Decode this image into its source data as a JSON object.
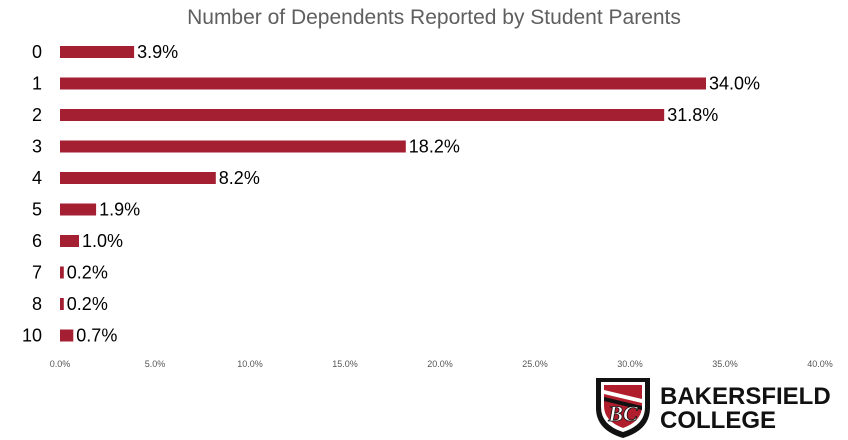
{
  "chart_data": {
    "type": "bar",
    "orientation": "horizontal",
    "title": "Number of Dependents Reported by Student Parents",
    "categories": [
      "0",
      "1",
      "2",
      "3",
      "4",
      "5",
      "6",
      "7",
      "8",
      "10"
    ],
    "values": [
      3.9,
      34.0,
      31.8,
      18.2,
      8.2,
      1.9,
      1.0,
      0.2,
      0.2,
      0.7
    ],
    "data_labels": [
      "3.9%",
      "34.0%",
      "31.8%",
      "18.2%",
      "8.2%",
      "1.9%",
      "1.0%",
      "0.2%",
      "0.2%",
      "0.7%"
    ],
    "xlim": [
      0,
      40
    ],
    "xticks": [
      0,
      5,
      10,
      15,
      20,
      25,
      30,
      35,
      40
    ],
    "xtick_labels": [
      "0.0%",
      "5.0%",
      "10.0%",
      "15.0%",
      "20.0%",
      "25.0%",
      "30.0%",
      "35.0%",
      "40.0%"
    ],
    "xlabel": "",
    "ylabel": "",
    "grid": false,
    "bar_color": "#a51f33"
  },
  "logo": {
    "line1": "BAKERSFIELD",
    "line2": "COLLEGE",
    "monogram": "BC",
    "shield_color": "#111111",
    "accent_color": "#b01e2d"
  }
}
